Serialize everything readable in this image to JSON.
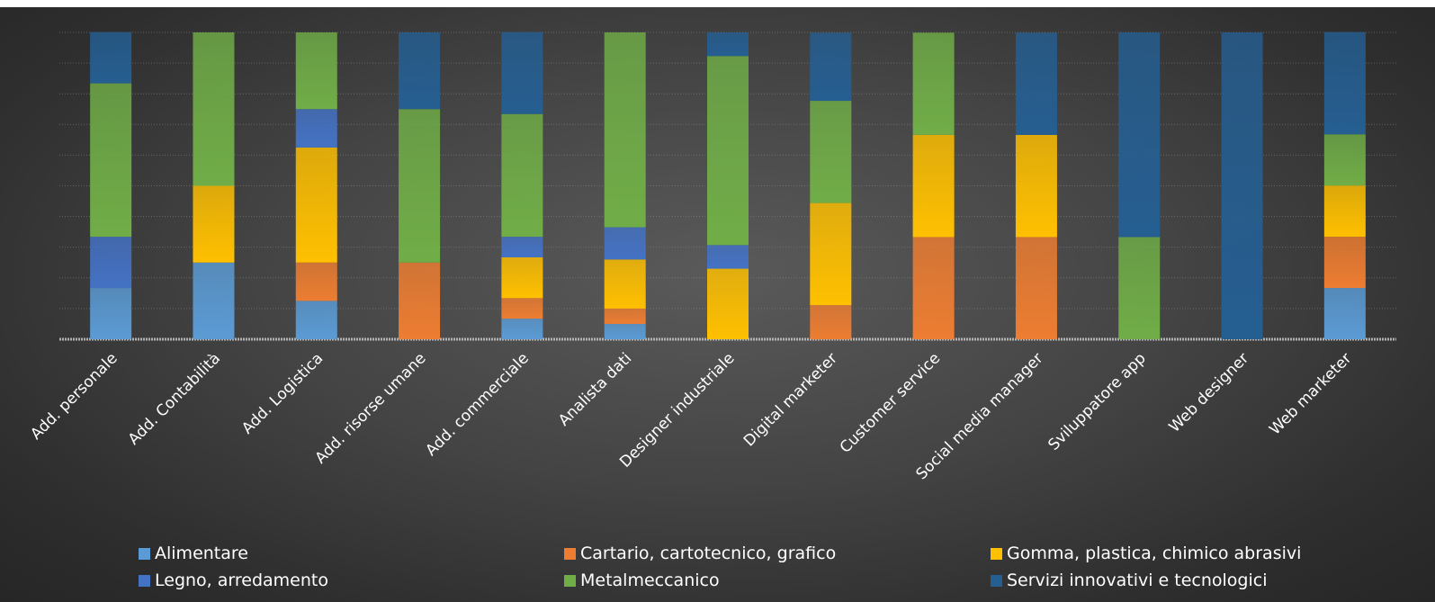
{
  "chart_data": {
    "type": "bar",
    "stacked": true,
    "percent": true,
    "ylim": [
      0,
      100
    ],
    "grid": true,
    "legend_position": "bottom",
    "categories": [
      "Add. personale",
      "Add. Contabilità",
      "Add. Logistica",
      "Add. risorse umane",
      "Add. commerciale",
      "Analista dati",
      "Designer industriale",
      "Digital marketer",
      "Customer service",
      "Social media manager",
      "Sviluppatore app",
      "Web designer",
      "Web marketer"
    ],
    "series": [
      {
        "name": "Alimentare",
        "color": "#5B9BD5",
        "values": [
          16.7,
          25,
          12.5,
          0,
          6.7,
          5,
          0,
          0,
          0,
          0,
          0,
          0,
          16.7
        ]
      },
      {
        "name": "Cartario, cartotecnico, grafico",
        "color": "#ED7D31",
        "values": [
          0,
          0,
          12.5,
          25,
          6.7,
          5,
          0,
          11.1,
          33.3,
          33.3,
          0,
          0,
          16.7
        ]
      },
      {
        "name": "Gomma, plastica, chimico abrasivi",
        "color": "#FFC000",
        "values": [
          0,
          25,
          37.5,
          0,
          13.3,
          16,
          23,
          33.3,
          33.3,
          33.3,
          0,
          0,
          16.7
        ]
      },
      {
        "name": "Legno, arredamento",
        "color": "#4472C4",
        "values": [
          16.7,
          0,
          12.5,
          0,
          6.7,
          10.5,
          7.7,
          0,
          0,
          0,
          0,
          0,
          0
        ]
      },
      {
        "name": "Metalmeccanico",
        "color": "#70AD47",
        "values": [
          50,
          50,
          25,
          50,
          40,
          63.5,
          61.6,
          33.3,
          33.3,
          0,
          33.3,
          0,
          16.7
        ]
      },
      {
        "name": "Servizi innovativi e tecnologici",
        "color": "#255E91",
        "values": [
          16.7,
          0,
          0,
          25,
          26.7,
          0,
          7.7,
          22.2,
          0,
          33.3,
          66.7,
          100,
          33.3
        ]
      }
    ]
  }
}
